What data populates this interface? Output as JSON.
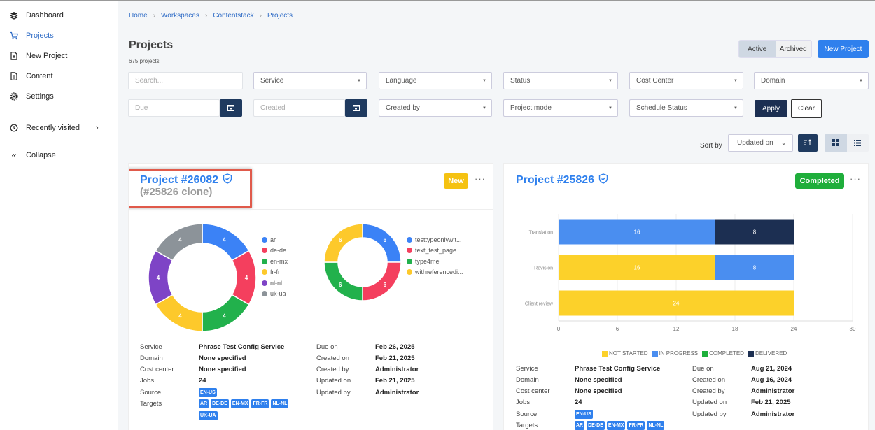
{
  "sidebar": {
    "items": [
      {
        "label": "Dashboard",
        "icon": "layers-icon"
      },
      {
        "label": "Projects",
        "icon": "cart-icon"
      },
      {
        "label": "New Project",
        "icon": "new-file-icon"
      },
      {
        "label": "Content",
        "icon": "document-icon"
      },
      {
        "label": "Settings",
        "icon": "gear-icon"
      },
      {
        "label": "Recently visited",
        "icon": "clock-icon"
      },
      {
        "label": "Collapse",
        "icon": "double-chevron-left-icon"
      }
    ]
  },
  "breadcrumb": [
    "Home",
    "Workspaces",
    "Contentstack",
    "Projects"
  ],
  "header": {
    "title": "Projects",
    "count": "675 projects",
    "active_label": "Active",
    "archived_label": "Archived",
    "new_project_label": "New Project"
  },
  "filters": {
    "search_placeholder": "Search...",
    "service": "Service",
    "language": "Language",
    "status": "Status",
    "cost_center": "Cost Center",
    "domain": "Domain",
    "due_placeholder": "Due",
    "created_placeholder": "Created",
    "created_by": "Created by",
    "project_mode": "Project mode",
    "schedule_status": "Schedule Status",
    "apply": "Apply",
    "clear": "Clear"
  },
  "sort": {
    "label": "Sort by",
    "value": "Updated on"
  },
  "colors": {
    "accent": "#2f80ed",
    "navy": "#1f3a5f",
    "new_badge": "#f5c211",
    "completed_badge": "#1fae3b",
    "not_started": "#fcd12a",
    "in_progress": "#4a8ef0",
    "completed": "#1eb03b",
    "delivered": "#1c2f52"
  },
  "cards": [
    {
      "title": "Project #26082",
      "subtitle": "(#25826 clone)",
      "status": "New",
      "details_left": [
        {
          "key": "Service",
          "value": "Phrase Test Config Service"
        },
        {
          "key": "Domain",
          "value": "None specified"
        },
        {
          "key": "Cost center",
          "value": "None specified"
        },
        {
          "key": "Jobs",
          "value": "24"
        },
        {
          "key": "Source",
          "value": ""
        },
        {
          "key": "Targets",
          "value": ""
        }
      ],
      "details_right": [
        {
          "key": "Due on",
          "value": "Feb 26, 2025"
        },
        {
          "key": "Created on",
          "value": "Feb 21, 2025"
        },
        {
          "key": "Created by",
          "value": "Administrator"
        },
        {
          "key": "Updated on",
          "value": "Feb 21, 2025"
        },
        {
          "key": "Updated by",
          "value": "Administrator"
        }
      ],
      "source_tags": [
        "EN-US"
      ],
      "target_tags": [
        "AR",
        "DE-DE",
        "EN-MX",
        "FR-FR",
        "NL-NL",
        "UK-UA"
      ]
    },
    {
      "title": "Project #25826",
      "status": "Completed",
      "details_left": [
        {
          "key": "Service",
          "value": "Phrase Test Config Service"
        },
        {
          "key": "Domain",
          "value": "None specified"
        },
        {
          "key": "Cost center",
          "value": "None specified"
        },
        {
          "key": "Jobs",
          "value": "24"
        },
        {
          "key": "Source",
          "value": ""
        },
        {
          "key": "Targets",
          "value": ""
        }
      ],
      "details_right": [
        {
          "key": "Due on",
          "value": "Aug 21, 2024"
        },
        {
          "key": "Created on",
          "value": "Aug 16, 2024"
        },
        {
          "key": "Created by",
          "value": "Administrator"
        },
        {
          "key": "Updated on",
          "value": "Feb 21, 2025"
        },
        {
          "key": "Updated by",
          "value": "Administrator"
        }
      ],
      "source_tags": [
        "EN-US"
      ],
      "target_tags": [
        "AR",
        "DE-DE",
        "EN-MX",
        "FR-FR",
        "NL-NL"
      ]
    }
  ],
  "chart_data": [
    {
      "type": "pie",
      "categories": [
        "ar",
        "de-de",
        "en-mx",
        "fr-fr",
        "nl-nl",
        "uk-ua"
      ],
      "values": [
        4,
        4,
        4,
        4,
        4,
        4
      ],
      "colors": [
        "#3b82f6",
        "#f43f5e",
        "#22b14c",
        "#fdc92b",
        "#7e44c6",
        "#8c9399"
      ],
      "donut": true,
      "legend": "right"
    },
    {
      "type": "pie",
      "categories": [
        "testtypeonlywit...",
        "text_test_page",
        "type4me",
        "withreferencedi..."
      ],
      "values": [
        6,
        6,
        6,
        6
      ],
      "colors": [
        "#3b82f6",
        "#f43f5e",
        "#22b14c",
        "#fdc92b"
      ],
      "donut": true,
      "legend": "right"
    },
    {
      "type": "bar",
      "orientation": "horizontal",
      "stacked": true,
      "categories": [
        "Translation",
        "Revision",
        "Client review"
      ],
      "series": [
        {
          "name": "NOT STARTED",
          "values": [
            0,
            16,
            24
          ]
        },
        {
          "name": "IN PROGRESS",
          "values": [
            16,
            8,
            0
          ]
        },
        {
          "name": "COMPLETED",
          "values": [
            0,
            0,
            0
          ]
        },
        {
          "name": "DELIVERED",
          "values": [
            8,
            0,
            0
          ]
        }
      ],
      "xticks": [
        0,
        6,
        12,
        18,
        24,
        30
      ],
      "xlim": [
        0,
        30
      ],
      "grid": true,
      "legend": "bottom"
    }
  ]
}
